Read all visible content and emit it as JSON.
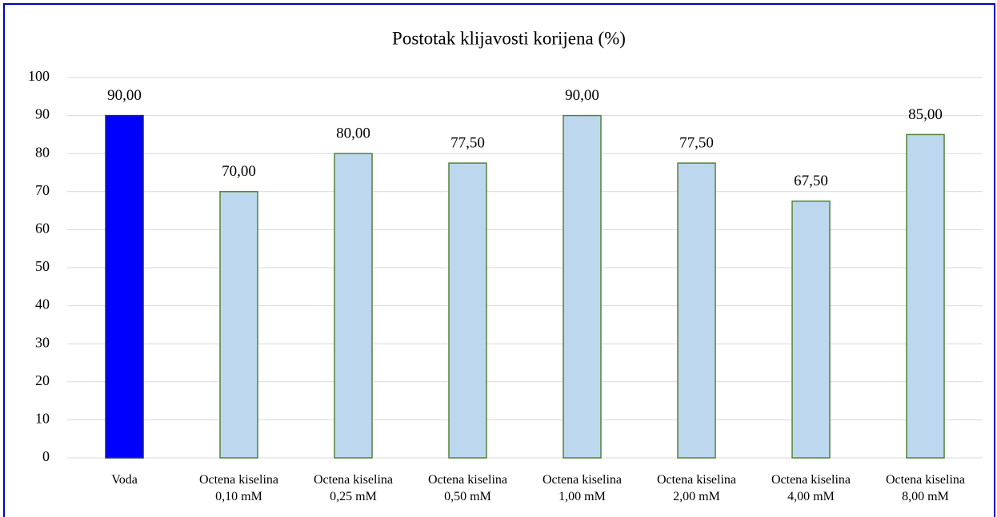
{
  "chart_data": {
    "type": "bar",
    "title": "Postotak klijavosti korijena (%)",
    "categories": [
      "Voda",
      "Octena kiselina\n0,10 mM",
      "Octena kiselina\n0,25 mM",
      "Octena kiselina\n0,50 mM",
      "Octena kiselina\n1,00 mM",
      "Octena kiselina\n2,00 mM",
      "Octena kiselina\n4,00 mM",
      "Octena kiselina\n8,00 mM"
    ],
    "values": [
      90,
      70,
      80,
      77.5,
      90,
      77.5,
      67.5,
      85
    ],
    "value_labels": [
      "90,00",
      "70,00",
      "80,00",
      "77,50",
      "90,00",
      "77,50",
      "67,50",
      "85,00"
    ],
    "colors": [
      "#0000ff",
      "#bdd7ee",
      "#bdd7ee",
      "#bdd7ee",
      "#bdd7ee",
      "#bdd7ee",
      "#bdd7ee",
      "#bdd7ee"
    ],
    "edgecolors": [
      "#1f2a60",
      "#548235",
      "#548235",
      "#548235",
      "#548235",
      "#548235",
      "#548235",
      "#548235"
    ],
    "ylim": [
      0,
      100
    ],
    "yticks": [
      0,
      10,
      20,
      30,
      40,
      50,
      60,
      70,
      80,
      90,
      100
    ],
    "grid": true
  }
}
